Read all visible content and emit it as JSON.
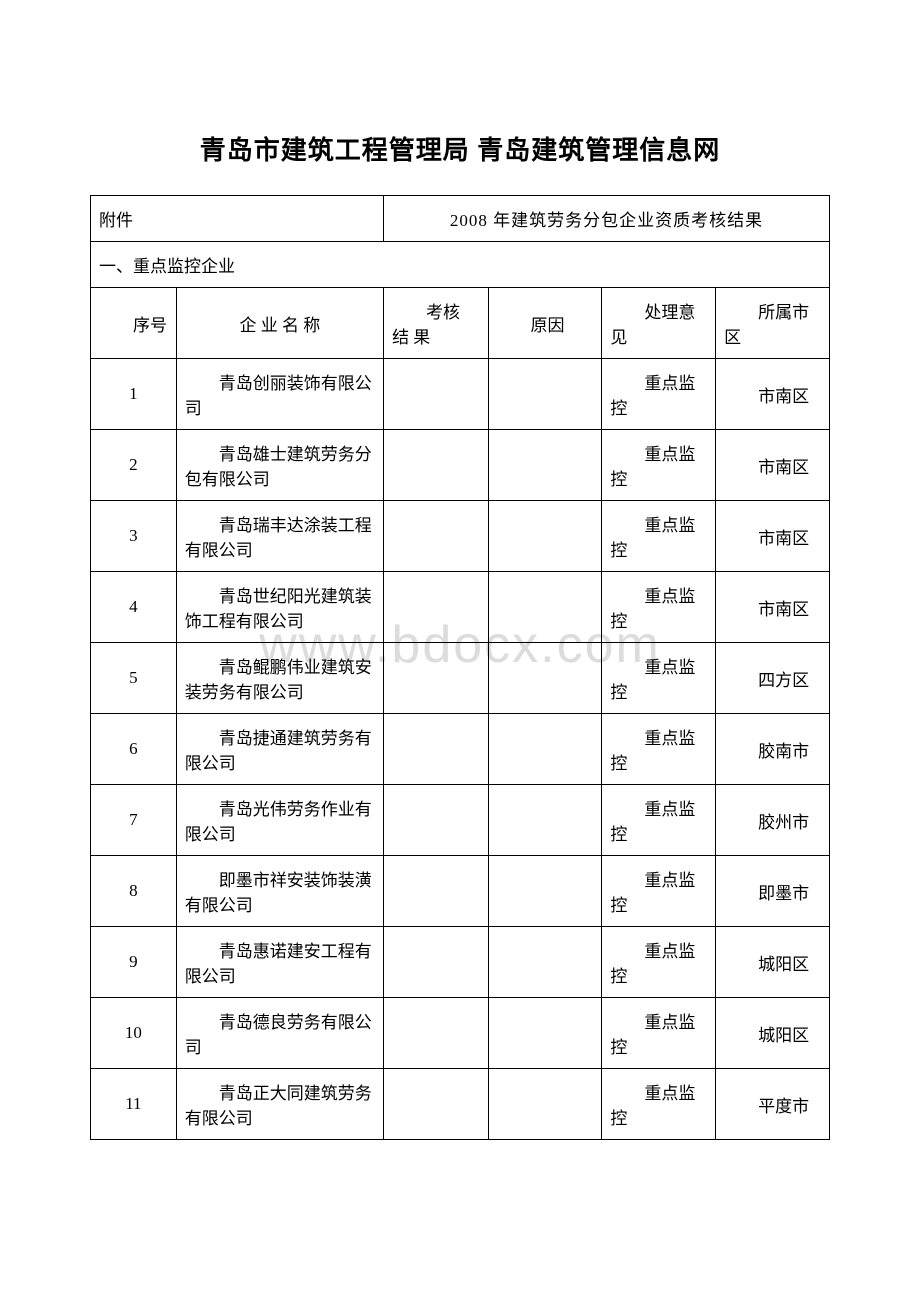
{
  "title": "青岛市建筑工程管理局 青岛建筑管理信息网",
  "attachment_label": "附件",
  "subtitle": "2008 年建筑劳务分包企业资质考核结果",
  "section_label": "一、重点监控企业",
  "watermark": "www.bdocx.com",
  "headers": {
    "num": "序号",
    "name": "企 业 名 称",
    "result": "考核 结 果",
    "reason": "原因",
    "opinion": "处理意见",
    "area": "所属市区"
  },
  "rows": [
    {
      "num": "1",
      "name": "青岛创丽装饰有限公司",
      "result": "",
      "reason": "",
      "opinion": "重点监控",
      "area": "市南区"
    },
    {
      "num": "2",
      "name": "青岛雄士建筑劳务分包有限公司",
      "result": "",
      "reason": "",
      "opinion": "重点监控",
      "area": "市南区"
    },
    {
      "num": "3",
      "name": "青岛瑞丰达涂装工程有限公司",
      "result": "",
      "reason": "",
      "opinion": "重点监控",
      "area": "市南区"
    },
    {
      "num": "4",
      "name": "青岛世纪阳光建筑装饰工程有限公司",
      "result": "",
      "reason": "",
      "opinion": "重点监控",
      "area": "市南区"
    },
    {
      "num": "5",
      "name": "青岛鲲鹏伟业建筑安装劳务有限公司",
      "result": "",
      "reason": "",
      "opinion": "重点监控",
      "area": "四方区"
    },
    {
      "num": "6",
      "name": "青岛捷通建筑劳务有限公司",
      "result": "",
      "reason": "",
      "opinion": "重点监控",
      "area": "胶南市"
    },
    {
      "num": "7",
      "name": "青岛光伟劳务作业有限公司",
      "result": "",
      "reason": "",
      "opinion": "重点监控",
      "area": "胶州市"
    },
    {
      "num": "8",
      "name": "即墨市祥安装饰装潢有限公司",
      "result": "",
      "reason": "",
      "opinion": "重点监控",
      "area": "即墨市"
    },
    {
      "num": "9",
      "name": "青岛惠诺建安工程有限公司",
      "result": "",
      "reason": "",
      "opinion": "重点监控",
      "area": "城阳区"
    },
    {
      "num": "10",
      "name": "青岛德良劳务有限公司",
      "result": "",
      "reason": "",
      "opinion": "重点监控",
      "area": "城阳区"
    },
    {
      "num": "11",
      "name": "青岛正大同建筑劳务有限公司",
      "result": "",
      "reason": "",
      "opinion": "重点监控",
      "area": "平度市"
    }
  ]
}
